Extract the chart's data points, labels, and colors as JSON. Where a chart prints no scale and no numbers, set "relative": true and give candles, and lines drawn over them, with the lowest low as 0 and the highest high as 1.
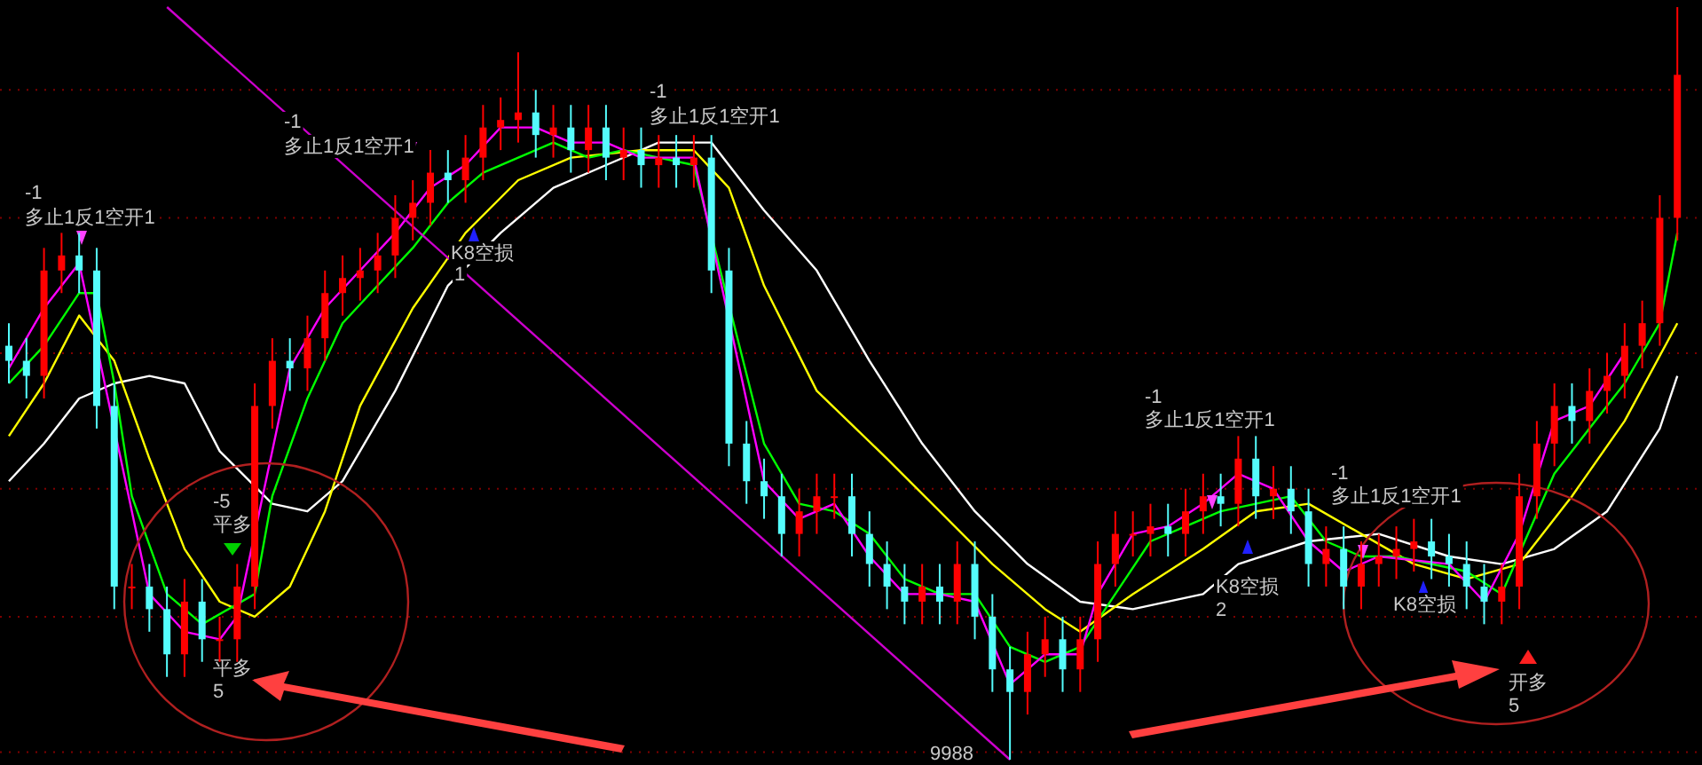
{
  "chart_data": {
    "type": "candlestick",
    "relative": true,
    "categories": [
      null,
      null,
      null,
      null,
      null,
      null,
      null,
      null,
      null,
      null,
      null,
      null,
      null,
      null,
      null,
      null,
      null,
      null,
      null,
      null,
      null,
      null,
      null,
      null,
      null,
      null,
      null,
      null,
      null,
      null,
      null,
      null,
      null,
      null,
      null,
      null,
      null,
      null,
      null,
      null,
      null,
      null,
      null,
      null,
      null,
      null,
      null,
      null,
      null,
      null,
      null,
      null,
      null,
      null,
      null,
      null,
      null,
      null,
      null,
      null,
      null,
      null,
      null,
      null,
      null,
      null,
      null,
      null,
      null,
      null,
      null,
      null,
      null,
      null,
      null,
      null,
      null,
      null,
      null,
      null,
      null,
      null,
      null,
      null,
      null,
      null,
      null,
      null,
      null,
      null,
      null,
      null,
      null,
      null,
      null,
      null
    ],
    "ohlc": [
      [
        0.55,
        0.58,
        0.5,
        0.53
      ],
      [
        0.53,
        0.56,
        0.48,
        0.51
      ],
      [
        0.51,
        0.68,
        0.48,
        0.65
      ],
      [
        0.65,
        0.7,
        0.62,
        0.67
      ],
      [
        0.67,
        0.7,
        0.62,
        0.65
      ],
      [
        0.65,
        0.68,
        0.44,
        0.47
      ],
      [
        0.47,
        0.5,
        0.2,
        0.23
      ],
      [
        0.23,
        0.26,
        0.2,
        0.23
      ],
      [
        0.23,
        0.26,
        0.17,
        0.2
      ],
      [
        0.2,
        0.23,
        0.11,
        0.14
      ],
      [
        0.14,
        0.24,
        0.11,
        0.21
      ],
      [
        0.21,
        0.24,
        0.13,
        0.16
      ],
      [
        0.16,
        0.19,
        0.13,
        0.16
      ],
      [
        0.16,
        0.26,
        0.13,
        0.23
      ],
      [
        0.23,
        0.5,
        0.2,
        0.47
      ],
      [
        0.47,
        0.56,
        0.44,
        0.53
      ],
      [
        0.53,
        0.56,
        0.49,
        0.52
      ],
      [
        0.52,
        0.59,
        0.49,
        0.56
      ],
      [
        0.56,
        0.65,
        0.53,
        0.62
      ],
      [
        0.62,
        0.67,
        0.59,
        0.64
      ],
      [
        0.64,
        0.68,
        0.61,
        0.65
      ],
      [
        0.65,
        0.7,
        0.62,
        0.67
      ],
      [
        0.67,
        0.75,
        0.64,
        0.72
      ],
      [
        0.72,
        0.77,
        0.69,
        0.74
      ],
      [
        0.74,
        0.81,
        0.71,
        0.78
      ],
      [
        0.78,
        0.81,
        0.74,
        0.77
      ],
      [
        0.77,
        0.83,
        0.74,
        0.8
      ],
      [
        0.8,
        0.87,
        0.77,
        0.84
      ],
      [
        0.84,
        0.88,
        0.81,
        0.85
      ],
      [
        0.85,
        0.94,
        0.82,
        0.86
      ],
      [
        0.86,
        0.89,
        0.8,
        0.83
      ],
      [
        0.83,
        0.87,
        0.8,
        0.84
      ],
      [
        0.84,
        0.87,
        0.78,
        0.81
      ],
      [
        0.81,
        0.87,
        0.78,
        0.84
      ],
      [
        0.84,
        0.87,
        0.77,
        0.8
      ],
      [
        0.8,
        0.84,
        0.77,
        0.81
      ],
      [
        0.81,
        0.84,
        0.76,
        0.79
      ],
      [
        0.79,
        0.83,
        0.76,
        0.8
      ],
      [
        0.8,
        0.83,
        0.76,
        0.79
      ],
      [
        0.79,
        0.83,
        0.76,
        0.8
      ],
      [
        0.8,
        0.83,
        0.62,
        0.65
      ],
      [
        0.65,
        0.68,
        0.39,
        0.42
      ],
      [
        0.42,
        0.45,
        0.34,
        0.37
      ],
      [
        0.37,
        0.4,
        0.32,
        0.35
      ],
      [
        0.35,
        0.38,
        0.27,
        0.3
      ],
      [
        0.3,
        0.36,
        0.27,
        0.33
      ],
      [
        0.33,
        0.38,
        0.3,
        0.35
      ],
      [
        0.35,
        0.38,
        0.32,
        0.35
      ],
      [
        0.35,
        0.38,
        0.27,
        0.3
      ],
      [
        0.3,
        0.33,
        0.23,
        0.26
      ],
      [
        0.26,
        0.29,
        0.2,
        0.23
      ],
      [
        0.23,
        0.26,
        0.18,
        0.21
      ],
      [
        0.21,
        0.26,
        0.18,
        0.23
      ],
      [
        0.23,
        0.26,
        0.18,
        0.21
      ],
      [
        0.21,
        0.29,
        0.18,
        0.26
      ],
      [
        0.26,
        0.29,
        0.16,
        0.19
      ],
      [
        0.19,
        0.22,
        0.09,
        0.12
      ],
      [
        0.12,
        0.15,
        0.0,
        0.09
      ],
      [
        0.09,
        0.17,
        0.06,
        0.14
      ],
      [
        0.14,
        0.19,
        0.11,
        0.16
      ],
      [
        0.16,
        0.19,
        0.09,
        0.12
      ],
      [
        0.12,
        0.19,
        0.09,
        0.16
      ],
      [
        0.16,
        0.29,
        0.13,
        0.26
      ],
      [
        0.26,
        0.33,
        0.23,
        0.3
      ],
      [
        0.3,
        0.33,
        0.27,
        0.3
      ],
      [
        0.3,
        0.34,
        0.27,
        0.31
      ],
      [
        0.31,
        0.34,
        0.27,
        0.3
      ],
      [
        0.3,
        0.36,
        0.27,
        0.33
      ],
      [
        0.33,
        0.38,
        0.3,
        0.35
      ],
      [
        0.35,
        0.38,
        0.31,
        0.34
      ],
      [
        0.34,
        0.43,
        0.31,
        0.4
      ],
      [
        0.4,
        0.43,
        0.32,
        0.35
      ],
      [
        0.35,
        0.39,
        0.32,
        0.36
      ],
      [
        0.36,
        0.39,
        0.3,
        0.33
      ],
      [
        0.33,
        0.36,
        0.23,
        0.26
      ],
      [
        0.26,
        0.31,
        0.23,
        0.28
      ],
      [
        0.28,
        0.31,
        0.2,
        0.23
      ],
      [
        0.23,
        0.29,
        0.2,
        0.26
      ],
      [
        0.26,
        0.3,
        0.23,
        0.27
      ],
      [
        0.27,
        0.31,
        0.24,
        0.28
      ],
      [
        0.28,
        0.32,
        0.25,
        0.29
      ],
      [
        0.29,
        0.32,
        0.24,
        0.27
      ],
      [
        0.27,
        0.3,
        0.23,
        0.26
      ],
      [
        0.26,
        0.29,
        0.2,
        0.23
      ],
      [
        0.23,
        0.26,
        0.18,
        0.21
      ],
      [
        0.21,
        0.26,
        0.18,
        0.23
      ],
      [
        0.23,
        0.38,
        0.2,
        0.35
      ],
      [
        0.35,
        0.45,
        0.32,
        0.42
      ],
      [
        0.42,
        0.5,
        0.39,
        0.47
      ],
      [
        0.47,
        0.5,
        0.42,
        0.45
      ],
      [
        0.45,
        0.52,
        0.42,
        0.49
      ],
      [
        0.49,
        0.54,
        0.46,
        0.51
      ],
      [
        0.51,
        0.58,
        0.48,
        0.55
      ],
      [
        0.55,
        0.61,
        0.52,
        0.58
      ],
      [
        0.58,
        0.75,
        0.55,
        0.72
      ],
      [
        0.72,
        1.0,
        0.69,
        0.91
      ]
    ],
    "colors": [
      "#54fcfc",
      "#54fcfc",
      "#ff0000",
      "#ff0000",
      "#54fcfc",
      "#54fcfc",
      "#54fcfc",
      "#ff0000",
      "#54fcfc",
      "#54fcfc",
      "#ff0000",
      "#54fcfc",
      "#ff0000",
      "#ff0000",
      "#ff0000",
      "#ff0000",
      "#54fcfc",
      "#ff0000",
      "#ff0000",
      "#ff0000",
      "#ff0000",
      "#ff0000",
      "#ff0000",
      "#ff0000",
      "#ff0000",
      "#54fcfc",
      "#ff0000",
      "#ff0000",
      "#ff0000",
      "#ff0000",
      "#54fcfc",
      "#ff0000",
      "#54fcfc",
      "#ff0000",
      "#54fcfc",
      "#ff0000",
      "#54fcfc",
      "#ff0000",
      "#54fcfc",
      "#ff0000",
      "#54fcfc",
      "#54fcfc",
      "#54fcfc",
      "#54fcfc",
      "#54fcfc",
      "#ff0000",
      "#ff0000",
      "#ff0000",
      "#54fcfc",
      "#54fcfc",
      "#54fcfc",
      "#54fcfc",
      "#ff0000",
      "#54fcfc",
      "#ff0000",
      "#54fcfc",
      "#54fcfc",
      "#54fcfc",
      "#ff0000",
      "#ff0000",
      "#54fcfc",
      "#ff0000",
      "#ff0000",
      "#ff0000",
      "#ff0000",
      "#ff0000",
      "#54fcfc",
      "#ff0000",
      "#ff0000",
      "#54fcfc",
      "#ff0000",
      "#54fcfc",
      "#ff0000",
      "#54fcfc",
      "#54fcfc",
      "#ff0000",
      "#54fcfc",
      "#ff0000",
      "#ff0000",
      "#ff0000",
      "#ff0000",
      "#54fcfc",
      "#54fcfc",
      "#54fcfc",
      "#54fcfc",
      "#ff0000",
      "#ff0000",
      "#ff0000",
      "#ff0000",
      "#54fcfc",
      "#ff0000",
      "#ff0000",
      "#ff0000",
      "#ff0000",
      "#ff0000",
      "#ff0000"
    ],
    "series": [
      {
        "type": "line",
        "color": "#ffffff",
        "values": [
          0.37,
          null,
          0.42,
          null,
          0.48,
          null,
          0.5,
          null,
          0.51,
          null,
          0.5,
          null,
          0.41,
          null,
          null,
          0.34,
          null,
          0.33,
          null,
          0.37,
          null,
          null,
          0.49,
          null,
          null,
          0.63,
          null,
          null,
          0.7,
          null,
          null,
          0.76,
          null,
          null,
          0.79,
          null,
          null,
          0.82,
          null,
          null,
          0.82,
          null,
          null,
          0.73,
          null,
          null,
          0.65,
          null,
          null,
          0.53,
          null,
          null,
          0.42,
          null,
          null,
          0.33,
          null,
          null,
          0.26,
          null,
          null,
          0.21,
          null,
          null,
          0.2,
          null,
          null,
          null,
          0.22,
          null,
          0.26,
          null,
          null,
          null,
          0.29,
          null,
          null,
          null,
          0.3,
          null,
          null,
          null,
          0.27,
          null,
          null,
          0.26,
          null,
          null,
          0.28,
          null,
          null,
          0.33,
          null,
          null,
          0.44,
          0.51
        ]
      },
      {
        "type": "line",
        "color": "#ffff00",
        "values": [
          0.43,
          null,
          0.5,
          null,
          0.59,
          null,
          0.53,
          null,
          0.4,
          null,
          0.28,
          null,
          0.21,
          null,
          0.19,
          null,
          0.23,
          null,
          0.33,
          null,
          0.47,
          null,
          null,
          0.6,
          null,
          null,
          0.7,
          null,
          null,
          0.77,
          null,
          null,
          0.8,
          null,
          null,
          null,
          0.81,
          null,
          null,
          0.81,
          null,
          0.76,
          null,
          0.63,
          null,
          null,
          0.49,
          null,
          null,
          null,
          0.4,
          null,
          null,
          0.33,
          null,
          null,
          0.26,
          null,
          null,
          0.2,
          null,
          0.17,
          null,
          null,
          0.22,
          null,
          null,
          null,
          0.28,
          null,
          null,
          0.33,
          null,
          null,
          0.34,
          null,
          null,
          0.3,
          null,
          null,
          0.26,
          null,
          null,
          0.24,
          null,
          null,
          0.26,
          null,
          null,
          0.35,
          null,
          null,
          0.45,
          null,
          null,
          0.58
        ]
      },
      {
        "type": "line",
        "color": "#00ff00",
        "values": [
          0.5,
          null,
          0.55,
          null,
          0.62,
          0.62,
          0.5,
          0.35,
          null,
          0.22,
          null,
          0.18,
          null,
          null,
          0.22,
          0.35,
          null,
          0.48,
          null,
          0.58,
          null,
          0.63,
          null,
          0.68,
          null,
          0.74,
          null,
          0.78,
          null,
          null,
          null,
          0.82,
          null,
          0.8,
          null,
          0.81,
          null,
          0.8,
          null,
          0.79,
          null,
          null,
          null,
          0.42,
          null,
          0.34,
          null,
          0.33,
          null,
          0.3,
          null,
          0.24,
          null,
          0.22,
          null,
          0.22,
          null,
          0.15,
          null,
          0.13,
          null,
          0.15,
          null,
          0.22,
          null,
          0.29,
          null,
          0.31,
          null,
          0.33,
          null,
          null,
          null,
          0.35,
          null,
          0.29,
          null,
          0.27,
          null,
          0.27,
          null,
          null,
          null,
          0.25,
          null,
          0.22,
          null,
          null,
          0.38,
          null,
          0.44,
          null,
          0.5,
          null,
          0.58,
          0.7
        ]
      },
      {
        "type": "line",
        "color": "#ff00ff",
        "values": [
          0.52,
          null,
          0.6,
          null,
          0.66,
          null,
          null,
          null,
          0.22,
          null,
          0.17,
          null,
          0.16,
          0.19,
          null,
          null,
          0.52,
          null,
          0.6,
          null,
          0.65,
          null,
          0.7,
          null,
          0.76,
          null,
          0.79,
          null,
          0.84,
          null,
          0.84,
          null,
          0.82,
          null,
          0.82,
          null,
          0.8,
          null,
          0.8,
          0.8,
          null,
          null,
          null,
          0.37,
          null,
          0.32,
          null,
          0.34,
          null,
          0.27,
          null,
          0.22,
          null,
          0.22,
          null,
          0.21,
          null,
          0.1,
          null,
          0.14,
          null,
          0.14,
          0.22,
          null,
          0.3,
          null,
          0.31,
          null,
          0.34,
          null,
          0.38,
          null,
          0.36,
          null,
          0.29,
          null,
          0.25,
          null,
          0.27,
          null,
          null,
          null,
          0.26,
          null,
          0.21,
          null,
          0.3,
          null,
          0.45,
          null,
          0.47,
          null,
          0.54,
          null,
          null,
          null
        ]
      },
      {
        "type": "line",
        "color": "#cc00cc",
        "values": [
          null,
          null,
          null,
          null,
          null,
          null,
          null,
          null,
          null,
          1.0,
          null,
          null,
          null,
          null,
          null,
          null,
          null,
          null,
          null,
          null,
          null,
          null,
          null,
          null,
          null,
          null,
          null,
          null,
          null,
          null,
          null,
          null,
          null,
          null,
          null,
          null,
          null,
          null,
          null,
          null,
          null,
          null,
          null,
          null,
          null,
          null,
          null,
          null,
          null,
          null,
          null,
          null,
          null,
          null,
          null,
          null,
          null,
          0.0,
          null,
          null,
          null,
          null,
          null,
          null,
          null,
          null,
          null,
          null,
          null,
          null,
          null,
          null,
          null,
          null,
          null,
          null,
          null,
          null,
          null,
          null,
          null,
          null,
          null,
          null,
          null,
          null,
          null,
          null,
          null,
          null,
          null,
          null,
          null,
          null,
          null,
          null
        ]
      }
    ],
    "ref_lines": [
      {
        "axis": "y",
        "value": 0.89,
        "color": "#800000",
        "line_style": "dotted"
      },
      {
        "axis": "y",
        "value": 0.72,
        "color": "#800000",
        "line_style": "dotted"
      },
      {
        "axis": "y",
        "value": 0.54,
        "color": "#800000",
        "line_style": "dotted"
      },
      {
        "axis": "y",
        "value": 0.36,
        "color": "#800000",
        "line_style": "dotted"
      },
      {
        "axis": "y",
        "value": 0.19,
        "color": "#800000",
        "line_style": "dotted"
      },
      {
        "axis": "y",
        "value": 0.01,
        "color": "#800000",
        "line_style": "dotted"
      }
    ],
    "annotations": [
      "-1",
      "多止1反1空开1",
      "-1",
      "多止1反1空开1",
      "K8空损",
      "1",
      "-1",
      "多止1反1空开1",
      "-5",
      "平多",
      "平多",
      "5",
      "9988",
      "-1",
      "多止1反1空开1",
      "K8空损",
      "2",
      "-1",
      "多止1反1空开1",
      "K8空损",
      "开多",
      "5"
    ]
  }
}
